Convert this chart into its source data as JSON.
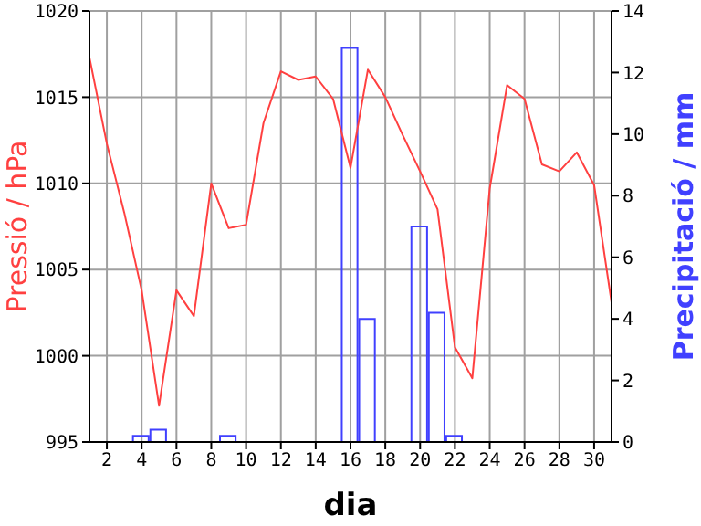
{
  "chart_data": {
    "type": "line",
    "xlabel": "dia",
    "ylabel": "Pressió / hPa",
    "y2label": "Precipitació / mm",
    "x": [
      1,
      2,
      3,
      4,
      5,
      6,
      7,
      8,
      9,
      10,
      11,
      12,
      13,
      14,
      15,
      16,
      17,
      18,
      19,
      20,
      21,
      22,
      23,
      24,
      25,
      26,
      27,
      28,
      29,
      30,
      31
    ],
    "series": [
      {
        "color": "#ff4040",
        "values": [
          1017.3,
          1012.3,
          1008.3,
          1003.8,
          997.1,
          1003.8,
          1002.3,
          1010.0,
          1007.4,
          1007.6,
          1013.5,
          1016.5,
          1016.0,
          1016.2,
          1014.9,
          1010.9,
          1016.6,
          1015.0,
          1012.8,
          1010.7,
          1008.5,
          1000.5,
          998.7,
          1009.7,
          1015.7,
          1014.9,
          1011.1,
          1010.7,
          1011.8,
          1009.9,
          1003.1
        ]
      },
      {
        "type": "bar",
        "axis": "y2",
        "color": "#4040ff",
        "values": [
          0,
          0,
          0,
          0.2,
          0.4,
          0,
          0,
          0,
          0.2,
          0,
          0,
          0,
          0,
          0,
          0,
          12.8,
          4.0,
          0,
          0,
          7.0,
          4.2,
          0.2,
          0,
          0,
          0,
          0,
          0,
          0,
          0,
          0,
          0
        ]
      }
    ],
    "xlim": [
      1,
      31
    ],
    "xticks": [
      2,
      4,
      6,
      8,
      10,
      12,
      14,
      16,
      18,
      20,
      22,
      24,
      26,
      28,
      30
    ],
    "ylim": [
      995,
      1020
    ],
    "yticks": [
      995,
      1000,
      1005,
      1010,
      1015,
      1020
    ],
    "y2lim": [
      0,
      14
    ],
    "y2ticks": [
      0,
      2,
      4,
      6,
      8,
      10,
      12,
      14
    ],
    "grid": true,
    "marker": "none"
  }
}
